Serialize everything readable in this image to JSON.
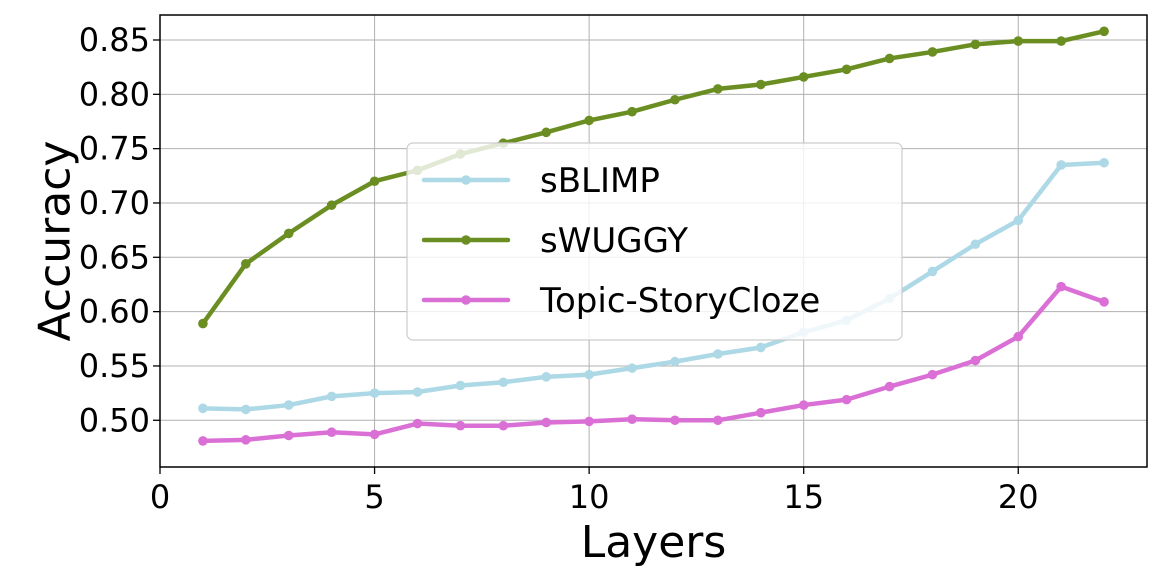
{
  "chart_data": {
    "type": "line",
    "xlabel": "Layers",
    "ylabel": "Accuracy",
    "xlim": [
      0,
      23
    ],
    "ylim": [
      0.457,
      0.873
    ],
    "xticks": [
      "0",
      "5",
      "10",
      "15",
      "20"
    ],
    "yticks": [
      "0.50",
      "0.55",
      "0.60",
      "0.65",
      "0.70",
      "0.75",
      "0.80",
      "0.85"
    ],
    "grid": true,
    "legend_position": "center",
    "x": [
      1,
      2,
      3,
      4,
      5,
      6,
      7,
      8,
      9,
      10,
      11,
      12,
      13,
      14,
      15,
      16,
      17,
      18,
      19,
      20,
      21,
      22
    ],
    "series": [
      {
        "name": "sBLIMP",
        "color": "#add8e6",
        "values": [
          0.511,
          0.51,
          0.514,
          0.522,
          0.525,
          0.526,
          0.532,
          0.535,
          0.54,
          0.542,
          0.548,
          0.554,
          0.561,
          0.567,
          0.581,
          0.592,
          0.612,
          0.637,
          0.662,
          0.684,
          0.735,
          0.737
        ]
      },
      {
        "name": "sWUGGY",
        "color": "#6b8e23",
        "values": [
          0.589,
          0.644,
          0.672,
          0.698,
          0.72,
          0.73,
          0.745,
          0.755,
          0.765,
          0.776,
          0.784,
          0.795,
          0.805,
          0.809,
          0.816,
          0.823,
          0.833,
          0.839,
          0.846,
          0.849,
          0.849,
          0.858
        ]
      },
      {
        "name": "Topic-StoryCloze",
        "color": "#da70d6",
        "values": [
          0.481,
          0.482,
          0.486,
          0.489,
          0.487,
          0.497,
          0.495,
          0.495,
          0.498,
          0.499,
          0.501,
          0.5,
          0.5,
          0.507,
          0.514,
          0.519,
          0.531,
          0.542,
          0.555,
          0.577,
          0.623,
          0.609
        ]
      }
    ]
  }
}
